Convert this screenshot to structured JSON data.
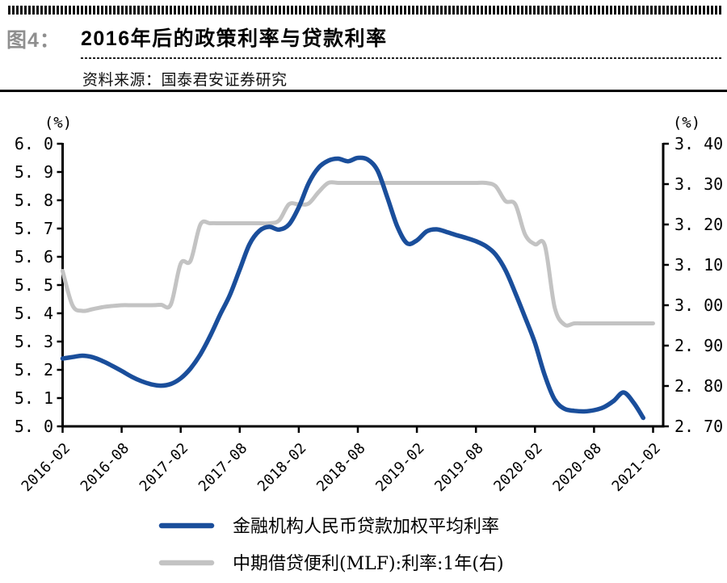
{
  "header": {
    "figure_label": "图4：",
    "figure_label_color": "#8f8f8f",
    "title": "2016年后的政策利率与贷款利率",
    "source": "资料来源：国泰君安证券研究"
  },
  "chart_data": {
    "type": "line",
    "title": "2016年后的政策利率与贷款利率",
    "x_range": [
      "2016-02",
      "2021-02"
    ],
    "x_tick_labels": [
      "2016-02",
      "2016-08",
      "2017-02",
      "2017-08",
      "2018-02",
      "2018-08",
      "2019-02",
      "2019-08",
      "2020-02",
      "2020-08",
      "2021-02"
    ],
    "grid": "off",
    "legend_position": "bottom",
    "left_axis": {
      "unit_label": "(%)",
      "min": 5.0,
      "max": 6.0,
      "tick_step": 0.1,
      "tick_labels_top_down": [
        "6. 0",
        "5. 9",
        "5. 8",
        "5. 7",
        "5. 6",
        "5. 5",
        "5. 4",
        "5. 3",
        "5. 2",
        "5. 1",
        "5. 0"
      ]
    },
    "right_axis": {
      "unit_label": "(%)",
      "min": 2.7,
      "max": 3.4,
      "tick_step": 0.1,
      "tick_labels_top_down": [
        "3. 40",
        "3. 30",
        "3. 20",
        "3. 10",
        "3. 00",
        "2. 90",
        "2. 80",
        "2. 70"
      ]
    },
    "series": [
      {
        "name": "金融机构人民币贷款加权平均利率",
        "axis": "left",
        "color": "#1a4e9b",
        "stroke_width": 5.5,
        "months": [
          "2016-02",
          "2016-03",
          "2016-04",
          "2016-05",
          "2016-06",
          "2016-07",
          "2016-08",
          "2016-09",
          "2016-10",
          "2016-11",
          "2016-12",
          "2017-01",
          "2017-02",
          "2017-03",
          "2017-04",
          "2017-05",
          "2017-06",
          "2017-07",
          "2017-08",
          "2017-09",
          "2017-10",
          "2017-11",
          "2017-12",
          "2018-01",
          "2018-02",
          "2018-03",
          "2018-04",
          "2018-05",
          "2018-06",
          "2018-07",
          "2018-08",
          "2018-09",
          "2018-10",
          "2018-11",
          "2018-12",
          "2019-01",
          "2019-02",
          "2019-03",
          "2019-04",
          "2019-05",
          "2019-06",
          "2019-07",
          "2019-08",
          "2019-09",
          "2019-10",
          "2019-11",
          "2019-12",
          "2020-01",
          "2020-02",
          "2020-03",
          "2020-04",
          "2020-05",
          "2020-06",
          "2020-07",
          "2020-08",
          "2020-09",
          "2020-10",
          "2020-11",
          "2020-12",
          "2021-01"
        ],
        "values": [
          5.24,
          5.245,
          5.25,
          5.245,
          5.232,
          5.215,
          5.196,
          5.176,
          5.16,
          5.149,
          5.144,
          5.15,
          5.17,
          5.205,
          5.255,
          5.32,
          5.395,
          5.465,
          5.555,
          5.645,
          5.692,
          5.706,
          5.696,
          5.714,
          5.775,
          5.86,
          5.915,
          5.94,
          5.947,
          5.938,
          5.95,
          5.944,
          5.905,
          5.81,
          5.708,
          5.648,
          5.658,
          5.69,
          5.697,
          5.688,
          5.677,
          5.667,
          5.655,
          5.638,
          5.608,
          5.553,
          5.472,
          5.385,
          5.295,
          5.18,
          5.095,
          5.062,
          5.055,
          5.053,
          5.057,
          5.068,
          5.09,
          5.12,
          5.085,
          5.03
        ]
      },
      {
        "name": "中期借贷便利(MLF):利率:1年(右)",
        "axis": "right",
        "color": "#c3c3c3",
        "stroke_width": 5,
        "months": [
          "2016-02",
          "2016-03",
          "2016-04",
          "2016-05",
          "2016-06",
          "2016-07",
          "2016-08",
          "2016-09",
          "2016-10",
          "2016-11",
          "2016-12",
          "2017-01",
          "2017-02",
          "2017-03",
          "2017-04",
          "2017-05",
          "2017-06",
          "2017-07",
          "2017-08",
          "2017-09",
          "2017-10",
          "2017-11",
          "2017-12",
          "2018-01",
          "2018-02",
          "2018-03",
          "2018-04",
          "2018-05",
          "2018-06",
          "2018-07",
          "2018-08",
          "2018-09",
          "2018-10",
          "2018-11",
          "2018-12",
          "2019-01",
          "2019-02",
          "2019-03",
          "2019-04",
          "2019-05",
          "2019-06",
          "2019-07",
          "2019-08",
          "2019-09",
          "2019-10",
          "2019-11",
          "2019-12",
          "2020-01",
          "2020-02",
          "2020-03",
          "2020-04",
          "2020-05",
          "2020-06",
          "2020-07",
          "2020-08",
          "2020-09",
          "2020-10",
          "2020-11",
          "2020-12",
          "2021-01",
          "2021-02"
        ],
        "values": [
          3.085,
          3.0,
          2.986,
          2.99,
          2.995,
          2.998,
          3.0,
          3.0,
          3.0,
          3.0,
          3.001,
          3.002,
          3.103,
          3.11,
          3.2,
          3.203,
          3.203,
          3.203,
          3.203,
          3.203,
          3.203,
          3.203,
          3.21,
          3.25,
          3.25,
          3.252,
          3.28,
          3.303,
          3.303,
          3.303,
          3.303,
          3.303,
          3.303,
          3.303,
          3.303,
          3.303,
          3.303,
          3.303,
          3.303,
          3.303,
          3.303,
          3.303,
          3.303,
          3.303,
          3.295,
          3.258,
          3.25,
          3.175,
          3.151,
          3.148,
          2.995,
          2.952,
          2.955,
          2.955,
          2.955,
          2.955,
          2.955,
          2.955,
          2.955,
          2.955,
          2.955
        ]
      }
    ]
  },
  "legend": {
    "items": [
      {
        "label": "金融机构人民币贷款加权平均利率",
        "color": "#1a4e9b"
      },
      {
        "label": "中期借贷便利(MLF):利率:1年(右)",
        "color": "#c3c3c3"
      }
    ]
  }
}
